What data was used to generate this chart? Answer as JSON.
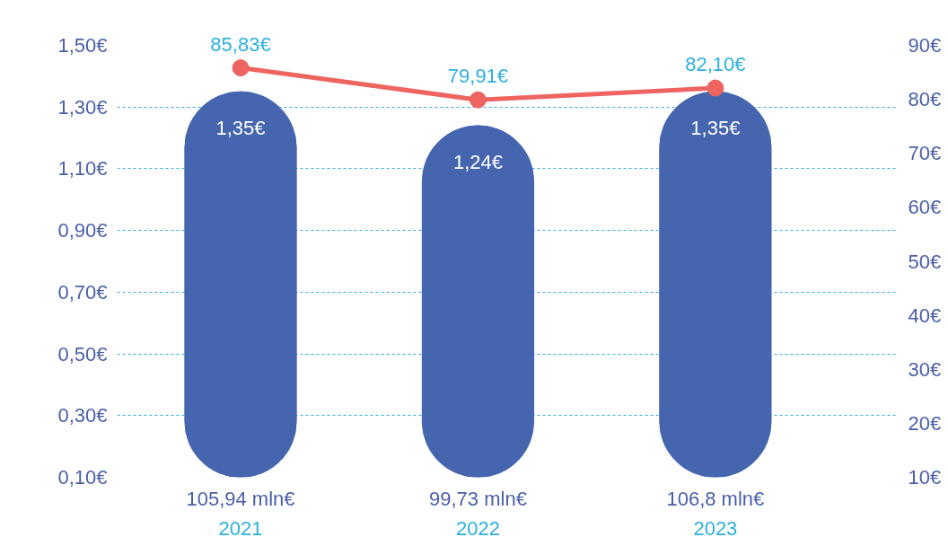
{
  "chart_data": {
    "type": "bar",
    "categories": [
      "2021",
      "2022",
      "2023"
    ],
    "series": [
      {
        "color": "#4565ae",
        "values": [
          1.35,
          1.24,
          1.35
        ],
        "value_labels": [
          "1,35€",
          "1,24€",
          "1,35€"
        ]
      },
      {
        "type": "line",
        "axis": "y2",
        "color": "#ee6461",
        "values": [
          85.83,
          79.91,
          82.1
        ],
        "value_labels": [
          "85,83€",
          "79,91€",
          "82,10€"
        ],
        "marker": "circle"
      }
    ],
    "annotations": [
      "105,94 mln€",
      "99,73 mln€",
      "106,8 mln€"
    ],
    "ylim": [
      0.1,
      1.5
    ],
    "yticks": [
      {
        "value": 0.1,
        "label": "0,10€"
      },
      {
        "value": 0.3,
        "label": "0,30€"
      },
      {
        "value": 0.5,
        "label": "0,50€"
      },
      {
        "value": 0.7,
        "label": "0,70€"
      },
      {
        "value": 0.9,
        "label": "0,90€"
      },
      {
        "value": 1.1,
        "label": "1,10€"
      },
      {
        "value": 1.3,
        "label": "1,30€"
      },
      {
        "value": 1.5,
        "label": "1,50€"
      }
    ],
    "y2lim": [
      10,
      90
    ],
    "y2ticks": [
      {
        "value": 10,
        "label": "10€"
      },
      {
        "value": 20,
        "label": "20€"
      },
      {
        "value": 30,
        "label": "30€"
      },
      {
        "value": 40,
        "label": "40€"
      },
      {
        "value": 50,
        "label": "50€"
      },
      {
        "value": 60,
        "label": "60€"
      },
      {
        "value": 70,
        "label": "70€"
      },
      {
        "value": 80,
        "label": "80€"
      },
      {
        "value": 90,
        "label": "90€"
      }
    ],
    "grid": "y",
    "line_style": "solid"
  }
}
